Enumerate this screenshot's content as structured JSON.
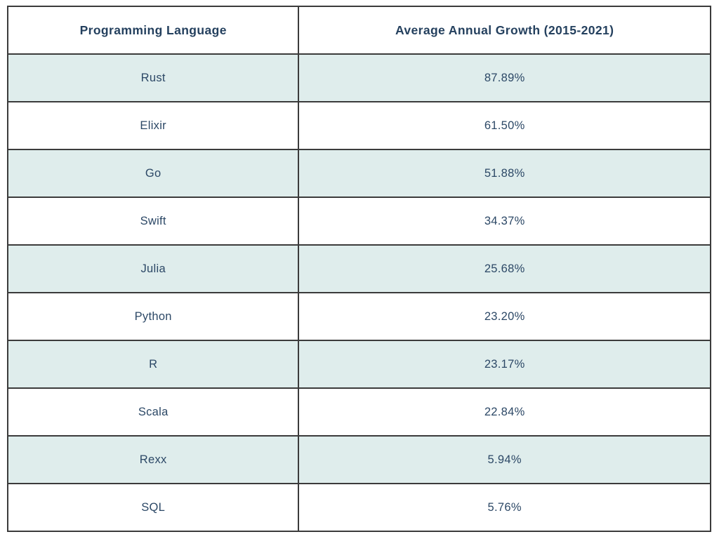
{
  "table": {
    "headers": [
      "Programming Language",
      "Average Annual Growth (2015-2021)"
    ],
    "rows": [
      [
        "Rust",
        "87.89%"
      ],
      [
        "Elixir",
        "61.50%"
      ],
      [
        "Go",
        "51.88%"
      ],
      [
        "Swift",
        "34.37%"
      ],
      [
        "Julia",
        "25.68%"
      ],
      [
        "Python",
        "23.20%"
      ],
      [
        "R",
        "23.17%"
      ],
      [
        "Scala",
        "22.84%"
      ],
      [
        "Rexx",
        "5.94%"
      ],
      [
        "SQL",
        "5.76%"
      ]
    ]
  },
  "chart_data": {
    "type": "table",
    "title": "",
    "columns": [
      "Programming Language",
      "Average Annual Growth (2015-2021)"
    ],
    "categories": [
      "Rust",
      "Elixir",
      "Go",
      "Swift",
      "Julia",
      "Python",
      "R",
      "Scala",
      "Rexx",
      "SQL"
    ],
    "values": [
      87.89,
      61.5,
      51.88,
      34.37,
      25.68,
      23.2,
      23.17,
      22.84,
      5.94,
      5.76
    ],
    "value_unit": "%",
    "layout_hints": {
      "striped_rows": true,
      "stripe_pattern": "odd-data-rows-shaded",
      "grid": "full-borders",
      "text_align": "center"
    }
  },
  "colors": {
    "border": "#3b3b3b",
    "text": "#2c4866",
    "header_text": "#24405e",
    "stripe_background": "#dfedec",
    "plain_background": "#ffffff"
  }
}
